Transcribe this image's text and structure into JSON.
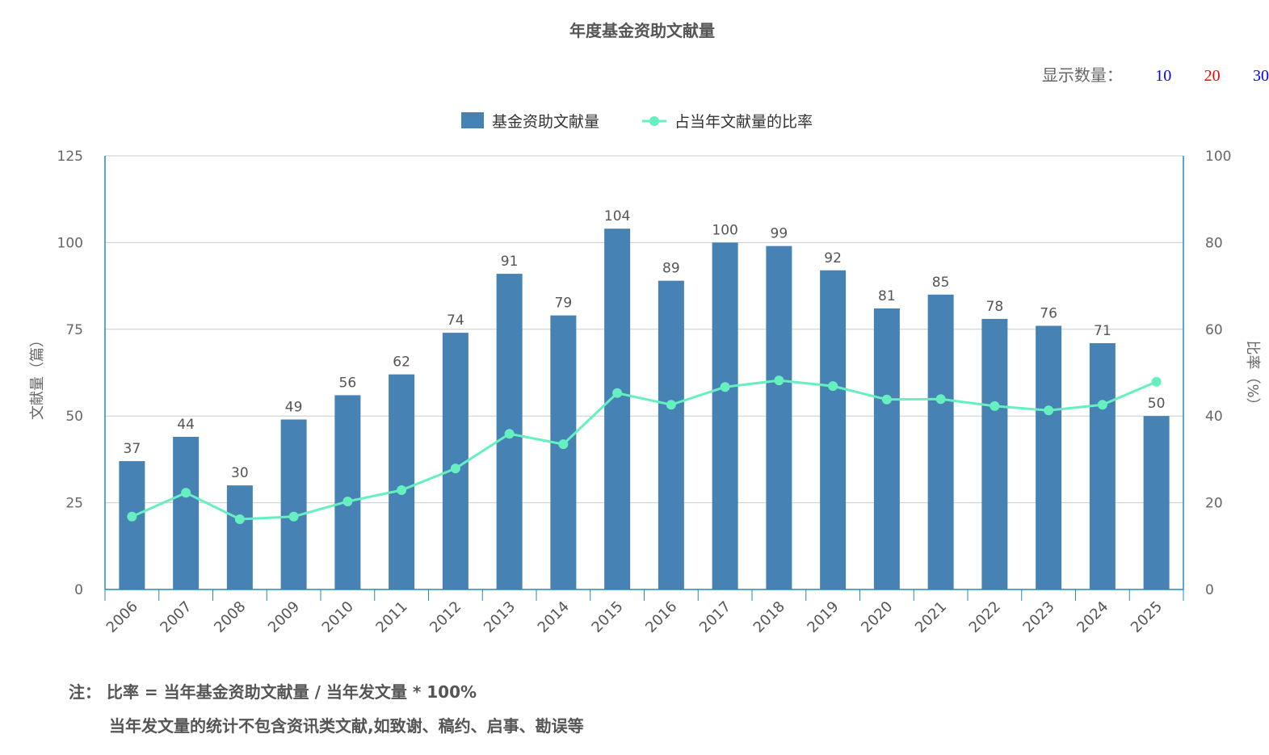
{
  "title": "年度基金资助文献量",
  "display_count": {
    "label": "显示数量：",
    "options": [
      {
        "label": "10",
        "color": "#0000ff"
      },
      {
        "label": "20",
        "color": "#ff0000"
      },
      {
        "label": "30",
        "color": "#0000ff"
      }
    ]
  },
  "note": {
    "line1": "注：  比率 = 当年基金资助文献量 / 当年发文量 * 100%",
    "line2": "当年发文量的统计不包含资讯类文献,如致谢、稿约、启事、勘误等"
  },
  "chart_data": {
    "type": "bar+line",
    "categories": [
      "2006",
      "2007",
      "2008",
      "2009",
      "2010",
      "2011",
      "2012",
      "2013",
      "2014",
      "2015",
      "2016",
      "2017",
      "2018",
      "2019",
      "2020",
      "2021",
      "2022",
      "2023",
      "2024",
      "2025"
    ],
    "series": [
      {
        "name": "基金资助文献量",
        "type": "bar",
        "axis": "left",
        "color": "#4682b4",
        "values": [
          37,
          44,
          30,
          49,
          56,
          62,
          74,
          91,
          79,
          104,
          89,
          100,
          99,
          92,
          81,
          85,
          78,
          76,
          71,
          50
        ]
      },
      {
        "name": "占当年文献量的比率",
        "type": "line",
        "axis": "right",
        "color": "#66f0c0",
        "values": [
          16.8,
          22.3,
          16.2,
          16.8,
          20.3,
          22.9,
          27.9,
          35.9,
          33.5,
          45.3,
          42.6,
          46.7,
          48.2,
          46.9,
          43.8,
          43.9,
          42.3,
          41.3,
          42.6,
          47.9
        ]
      }
    ],
    "ylabel": "文献量（篇）",
    "ylim": [
      0,
      125
    ],
    "yticks": [
      "0",
      "25",
      "50",
      "75",
      "100",
      "125"
    ],
    "y2label": "比率（%）",
    "y2lim": [
      0,
      100
    ],
    "y2ticks": [
      "0",
      "20",
      "40",
      "60",
      "80",
      "100"
    ],
    "legend": "top-center",
    "grid": true
  }
}
